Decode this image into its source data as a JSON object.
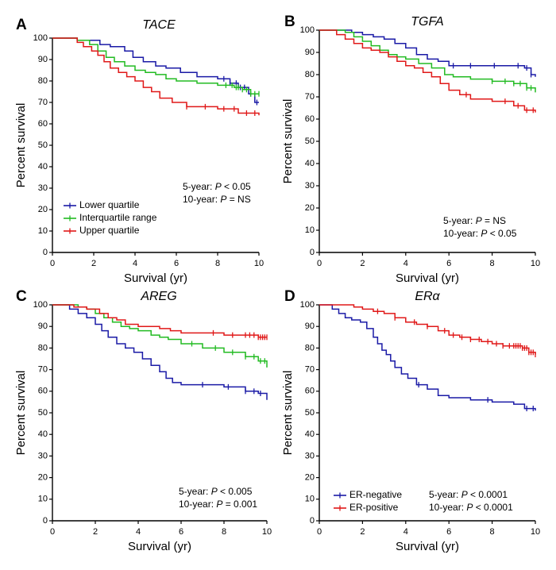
{
  "colors": {
    "lower": "#1a1aa6",
    "inter": "#22bb22",
    "upper": "#e01818",
    "er_neg": "#1a1aa6",
    "er_pos": "#e01818"
  },
  "chart_data": [
    {
      "id": "A",
      "type": "line",
      "kind": "kaplan-meier",
      "title": "TACE",
      "xlabel": "Survival (yr)",
      "ylabel": "Percent survival",
      "xlim": [
        0,
        10
      ],
      "ylim": [
        0,
        100
      ],
      "xticks": [
        "0",
        "2",
        "4",
        "6",
        "8",
        "10"
      ],
      "yticks": [
        "0",
        "10",
        "20",
        "30",
        "40",
        "50",
        "60",
        "70",
        "80",
        "90",
        "100"
      ],
      "legend_position": "left, lower middle",
      "annotations": [
        {
          "prefix": "5-year: ",
          "p": "P",
          "rest": " < 0.05"
        },
        {
          "prefix": "10-year: ",
          "p": "P",
          "rest": " = NS"
        }
      ],
      "series": [
        {
          "name": "Lower quartile",
          "color": "#1a1aa6",
          "x": [
            0,
            1.2,
            2.0,
            2.3,
            2.8,
            3.5,
            3.9,
            4.4,
            5.0,
            5.5,
            6.2,
            7.0,
            8.0,
            8.6,
            9.0,
            9.5,
            9.8,
            10.0
          ],
          "y": [
            100,
            99,
            99,
            97,
            96,
            94,
            91,
            89,
            87,
            86,
            84,
            82,
            81,
            79,
            77,
            74,
            70,
            70
          ],
          "censor_x": [
            8.3,
            8.6,
            8.9,
            9.1,
            9.3,
            9.6,
            9.9
          ]
        },
        {
          "name": "Interquartile range",
          "color": "#22bb22",
          "x": [
            0,
            1.2,
            1.8,
            2.2,
            2.6,
            3.0,
            3.5,
            4.0,
            4.5,
            5.0,
            5.5,
            6.0,
            7.0,
            8.0,
            8.8,
            9.2,
            9.6,
            10.0
          ],
          "y": [
            100,
            99,
            97,
            94,
            91,
            89,
            87,
            85,
            84,
            83,
            81,
            80,
            79,
            78,
            77,
            76,
            74,
            74
          ],
          "censor_x": [
            8.4,
            8.7,
            8.9,
            9.0,
            9.2,
            9.4,
            9.6,
            9.8,
            10.0
          ]
        },
        {
          "name": "Upper quartile",
          "color": "#e01818",
          "x": [
            0,
            1.2,
            1.5,
            1.9,
            2.2,
            2.5,
            2.8,
            3.2,
            3.6,
            4.0,
            4.4,
            4.8,
            5.2,
            5.8,
            6.5,
            7.0,
            8.0,
            9.0,
            9.5,
            10.0
          ],
          "y": [
            100,
            98,
            96,
            94,
            92,
            89,
            86,
            84,
            82,
            80,
            77,
            75,
            72,
            70,
            68,
            68,
            67,
            65,
            65,
            64
          ],
          "censor_x": [
            6.5,
            7.4,
            8.3,
            8.8,
            9.4,
            9.8
          ]
        }
      ]
    },
    {
      "id": "B",
      "type": "line",
      "kind": "kaplan-meier",
      "title": "TGFA",
      "xlabel": "Survival (yr)",
      "ylabel": "Percent survival",
      "xlim": [
        0,
        10
      ],
      "ylim": [
        0,
        100
      ],
      "xticks": [
        "0",
        "2",
        "4",
        "6",
        "8",
        "10"
      ],
      "yticks": [
        "0",
        "10",
        "20",
        "30",
        "40",
        "50",
        "60",
        "70",
        "80",
        "90",
        "100"
      ],
      "annotations": [
        {
          "prefix": "5-year: ",
          "p": "P",
          "rest": " = NS"
        },
        {
          "prefix": "10-year: ",
          "p": "P",
          "rest": " < 0.05"
        }
      ],
      "series": [
        {
          "name": "Lower quartile",
          "color": "#1a1aa6",
          "x": [
            0,
            1.5,
            2.0,
            2.5,
            3.0,
            3.5,
            4.0,
            4.5,
            5.0,
            5.5,
            6.0,
            7.0,
            8.0,
            9.0,
            9.5,
            9.8,
            10.0
          ],
          "y": [
            100,
            99,
            98,
            97,
            96,
            94,
            92,
            89,
            87,
            86,
            84,
            84,
            84,
            84,
            83,
            80,
            79
          ],
          "censor_x": [
            6.2,
            7.0,
            8.1,
            9.2,
            9.6,
            9.8
          ]
        },
        {
          "name": "Interquartile range",
          "color": "#22bb22",
          "x": [
            0,
            1.2,
            1.6,
            2.0,
            2.4,
            2.8,
            3.2,
            3.6,
            4.0,
            4.6,
            5.2,
            5.8,
            6.2,
            7.0,
            8.0,
            9.0,
            9.6,
            10.0
          ],
          "y": [
            100,
            99,
            97,
            95,
            93,
            91,
            89,
            88,
            87,
            85,
            83,
            80,
            79,
            78,
            77,
            76,
            74,
            72
          ],
          "censor_x": [
            8.0,
            8.6,
            9.0,
            9.3,
            9.6,
            9.8
          ]
        },
        {
          "name": "Upper quartile",
          "color": "#e01818",
          "x": [
            0,
            0.8,
            1.2,
            1.6,
            2.0,
            2.4,
            2.8,
            3.2,
            3.6,
            4.0,
            4.4,
            4.8,
            5.2,
            5.6,
            6.0,
            6.5,
            7.0,
            8.0,
            9.0,
            9.5,
            10.0
          ],
          "y": [
            100,
            98,
            96,
            94,
            92,
            91,
            90,
            88,
            86,
            84,
            83,
            81,
            79,
            76,
            73,
            71,
            69,
            68,
            66,
            64,
            63
          ],
          "censor_x": [
            6.8,
            8.6,
            9.2,
            9.6,
            9.9
          ]
        }
      ]
    },
    {
      "id": "C",
      "type": "line",
      "kind": "kaplan-meier",
      "title": "AREG",
      "xlabel": "Survival (yr)",
      "ylabel": "Percent survival",
      "xlim": [
        0,
        10
      ],
      "ylim": [
        0,
        100
      ],
      "xticks": [
        "0",
        "2",
        "4",
        "6",
        "8",
        "10"
      ],
      "yticks": [
        "0",
        "10",
        "20",
        "30",
        "40",
        "50",
        "60",
        "70",
        "80",
        "90",
        "100"
      ],
      "annotations": [
        {
          "prefix": "5-year: ",
          "p": "P",
          "rest": " < 0.005"
        },
        {
          "prefix": "10-year: ",
          "p": "P",
          "rest": " = 0.001"
        }
      ],
      "series": [
        {
          "name": "Lower quartile",
          "color": "#1a1aa6",
          "x": [
            0,
            0.8,
            1.2,
            1.6,
            2.0,
            2.3,
            2.6,
            3.0,
            3.4,
            3.8,
            4.2,
            4.6,
            5.0,
            5.3,
            5.6,
            6.0,
            7.0,
            8.0,
            9.0,
            9.6,
            10.0
          ],
          "y": [
            100,
            98,
            96,
            94,
            91,
            88,
            85,
            82,
            80,
            78,
            75,
            72,
            69,
            66,
            64,
            63,
            63,
            62,
            60,
            59,
            56
          ],
          "censor_x": [
            7.0,
            8.2,
            9.0,
            9.4,
            9.7
          ]
        },
        {
          "name": "Interquartile range",
          "color": "#22bb22",
          "x": [
            0,
            1.2,
            1.6,
            2.0,
            2.4,
            2.8,
            3.2,
            3.6,
            4.0,
            4.6,
            5.0,
            5.4,
            6.0,
            7.0,
            8.0,
            9.0,
            9.6,
            10.0
          ],
          "y": [
            100,
            99,
            98,
            96,
            94,
            92,
            90,
            89,
            88,
            86,
            85,
            84,
            82,
            80,
            78,
            76,
            74,
            71
          ],
          "censor_x": [
            6.5,
            7.6,
            8.4,
            9.0,
            9.4,
            9.7,
            9.9
          ]
        },
        {
          "name": "Upper quartile",
          "color": "#e01818",
          "x": [
            0,
            1.0,
            1.6,
            2.2,
            2.6,
            3.0,
            3.4,
            4.0,
            5.0,
            5.5,
            6.0,
            7.0,
            8.0,
            9.0,
            9.6,
            10.0
          ],
          "y": [
            100,
            99,
            98,
            96,
            94,
            93,
            91,
            90,
            89,
            88,
            87,
            87,
            86,
            86,
            85,
            85
          ],
          "censor_x": [
            7.5,
            8.4,
            9.0,
            9.2,
            9.4,
            9.6,
            9.7,
            9.8,
            9.9,
            10.0
          ]
        }
      ]
    },
    {
      "id": "D",
      "type": "line",
      "kind": "kaplan-meier",
      "title": "ERα",
      "xlabel": "Survival (yr)",
      "ylabel": "Percent survival",
      "xlim": [
        0,
        10
      ],
      "ylim": [
        0,
        100
      ],
      "xticks": [
        "0",
        "2",
        "4",
        "6",
        "8",
        "10"
      ],
      "yticks": [
        "0",
        "10",
        "20",
        "30",
        "40",
        "50",
        "60",
        "70",
        "80",
        "90",
        "100"
      ],
      "legend_position": "bottom-left",
      "annotations": [
        {
          "prefix": "5-year: ",
          "p": "P",
          "rest": " < 0.0001"
        },
        {
          "prefix": "10-year: ",
          "p": "P",
          "rest": " < 0.0001"
        }
      ],
      "series": [
        {
          "name": "ER-negative",
          "color": "#1a1aa6",
          "x": [
            0,
            0.6,
            0.9,
            1.2,
            1.5,
            1.9,
            2.2,
            2.5,
            2.7,
            2.9,
            3.1,
            3.3,
            3.5,
            3.8,
            4.1,
            4.5,
            5.0,
            5.5,
            6.0,
            7.0,
            8.0,
            9.0,
            9.5,
            10.0
          ],
          "y": [
            100,
            98,
            96,
            94,
            93,
            92,
            89,
            85,
            82,
            79,
            77,
            74,
            71,
            68,
            66,
            63,
            61,
            58,
            57,
            56,
            55,
            54,
            52,
            51
          ],
          "censor_x": [
            4.6,
            7.8,
            9.6,
            9.9
          ]
        },
        {
          "name": "ER-positive",
          "color": "#e01818",
          "x": [
            0,
            1.0,
            1.6,
            2.0,
            2.5,
            3.0,
            3.5,
            4.0,
            4.5,
            5.0,
            5.5,
            6.0,
            6.5,
            7.0,
            7.5,
            8.0,
            8.5,
            9.0,
            9.4,
            9.7,
            10.0
          ],
          "y": [
            100,
            100,
            99,
            98,
            97,
            96,
            94,
            92,
            91,
            90,
            88,
            86,
            85,
            84,
            83,
            82,
            81,
            81,
            80,
            78,
            77
          ],
          "censor_x": [
            2.7,
            3.5,
            4.4,
            5.0,
            5.8,
            6.2,
            6.6,
            7.0,
            7.4,
            7.8,
            8.2,
            8.5,
            8.8,
            9.0,
            9.1,
            9.2,
            9.3,
            9.4,
            9.5,
            9.6,
            9.7,
            9.8,
            9.9,
            10.0
          ]
        }
      ]
    }
  ]
}
